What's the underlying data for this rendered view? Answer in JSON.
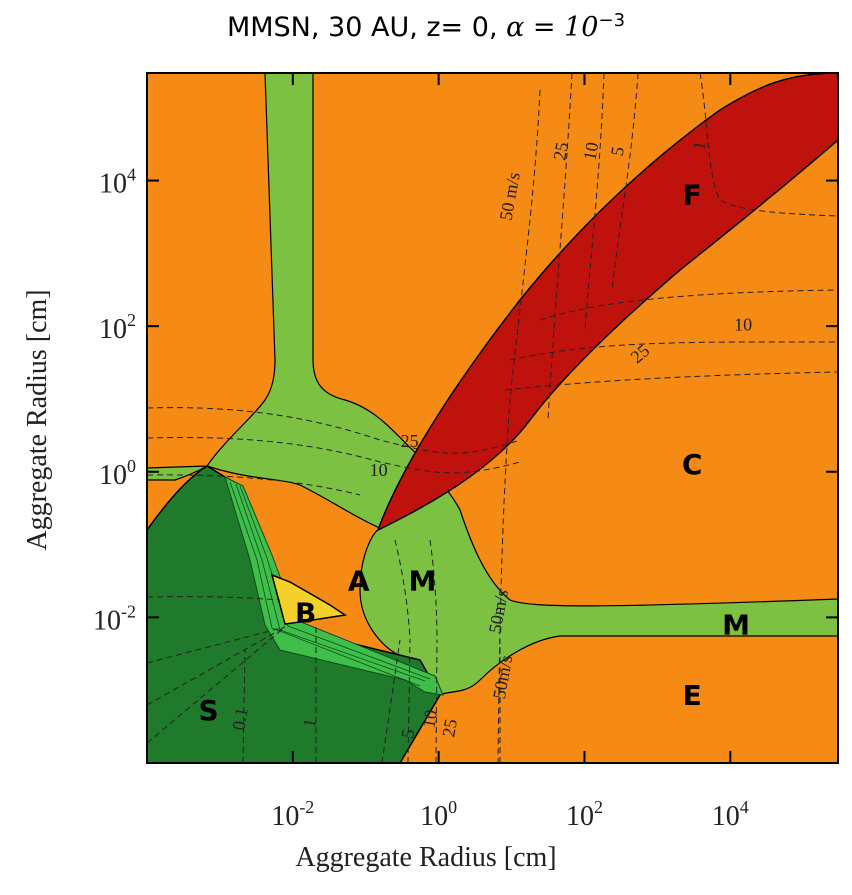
{
  "chart_data": {
    "type": "heatmap",
    "title": "MMSN, 30 AU,  z= 0, ",
    "title_alpha": "α = 10",
    "title_alpha_exp": "−3",
    "xlabel": "Aggregate Radius [cm]",
    "ylabel": "Aggregate Radius [cm]",
    "x_scale": "log",
    "y_scale": "log",
    "xlim": [
      0.0001,
      300000
    ],
    "ylim": [
      0.0001,
      300000
    ],
    "x_ticks": [
      {
        "value": 0.01,
        "base": "10",
        "exp": "-2"
      },
      {
        "value": 1,
        "base": "10",
        "exp": "0"
      },
      {
        "value": 100,
        "base": "10",
        "exp": "2"
      },
      {
        "value": 10000,
        "base": "10",
        "exp": "4"
      }
    ],
    "y_ticks": [
      {
        "value": 0.01,
        "base": "10",
        "exp": "-2"
      },
      {
        "value": 1,
        "base": "10",
        "exp": "0"
      },
      {
        "value": 100,
        "base": "10",
        "exp": "2"
      },
      {
        "value": 10000,
        "base": "10",
        "exp": "4"
      }
    ],
    "colors": {
      "sticking": "#1f7a2c",
      "bouncing": "#f3d12a",
      "bouncing_transition": "#3fbf4a",
      "mass_transfer": "#7cc142",
      "fragmentation": "#c0120d",
      "orange_background": "#f58a14"
    },
    "regions": [
      {
        "label": "S",
        "x": 0.0007,
        "y": 0.0005
      },
      {
        "label": "B",
        "x": 0.015,
        "y": 0.011
      },
      {
        "label": "A",
        "x": 0.08,
        "y": 0.03
      },
      {
        "label": "M",
        "x": 0.6,
        "y": 0.03
      },
      {
        "label": "M",
        "x": 12000,
        "y": 0.0075
      },
      {
        "label": "F",
        "x": 3000,
        "y": 6000
      },
      {
        "label": "C",
        "x": 3000,
        "y": 1.2
      },
      {
        "label": "E",
        "x": 3000,
        "y": 0.0008
      }
    ],
    "contour_labels": [
      {
        "text": "50 m/s",
        "x": 10,
        "y": 6000,
        "angle": -80
      },
      {
        "text": "25",
        "x": 50,
        "y": 25000,
        "angle": -80
      },
      {
        "text": "10",
        "x": 130,
        "y": 25000,
        "angle": -80
      },
      {
        "text": "5",
        "x": 300,
        "y": 25000,
        "angle": -80
      },
      {
        "text": "1",
        "x": 4000,
        "y": 30000,
        "angle": -80
      },
      {
        "text": "10",
        "x": 15000,
        "y": 100,
        "angle": 0
      },
      {
        "text": "25",
        "x": 600,
        "y": 40,
        "angle": -40
      },
      {
        "text": "25",
        "x": 0.4,
        "y": 2.5,
        "angle": 0
      },
      {
        "text": "10",
        "x": 0.15,
        "y": 1,
        "angle": 0
      },
      {
        "text": "50m/s",
        "x": 7,
        "y": 0.012,
        "angle": -80
      },
      {
        "text": "50m/s",
        "x": 8,
        "y": 0.0015,
        "angle": -80
      },
      {
        "text": "25",
        "x": 1.5,
        "y": 0.0003,
        "angle": -80
      },
      {
        "text": "10",
        "x": 0.8,
        "y": 0.0004,
        "angle": -80
      },
      {
        "text": "5",
        "x": 0.4,
        "y": 0.00025,
        "angle": -80
      },
      {
        "text": "1",
        "x": 0.018,
        "y": 0.00035,
        "angle": -80
      },
      {
        "text": "0.1",
        "x": 0.002,
        "y": 0.0004,
        "angle": -80
      }
    ]
  }
}
